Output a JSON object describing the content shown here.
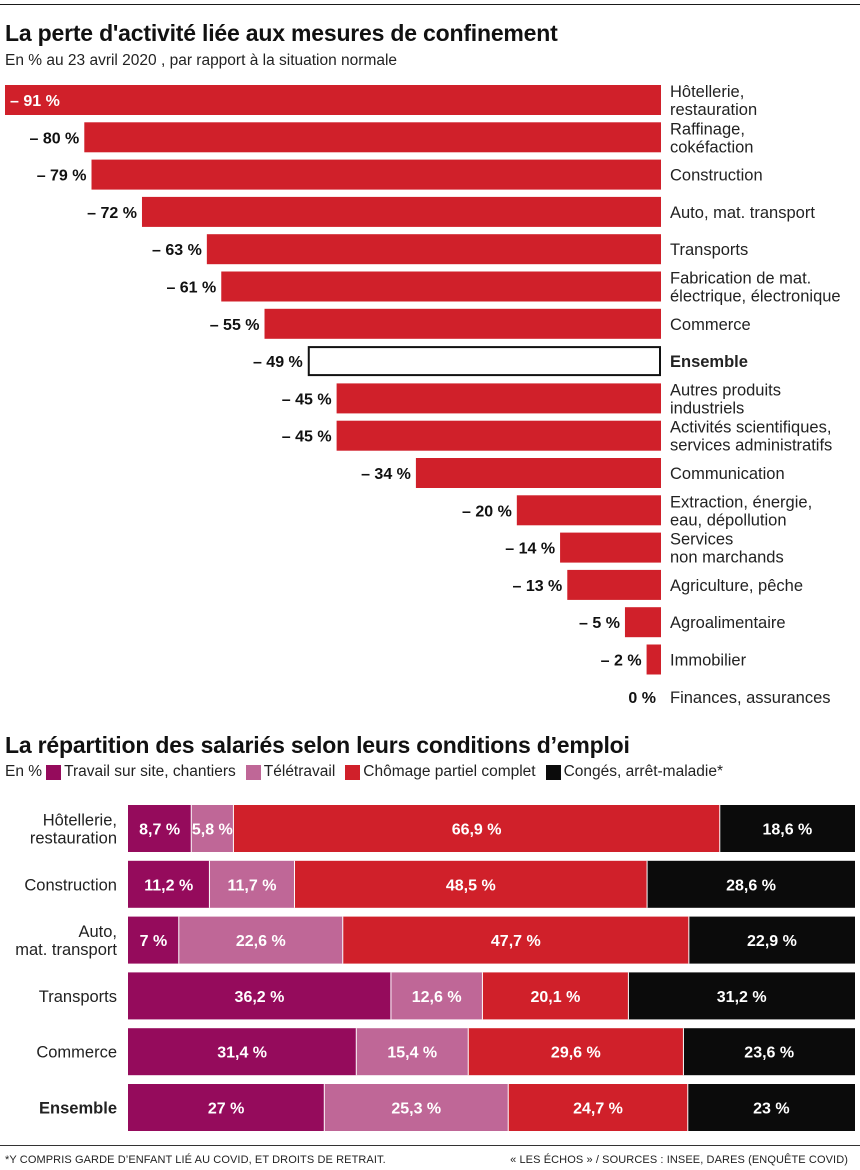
{
  "chart_data": [
    {
      "type": "bar",
      "orientation": "horizontal",
      "title": "La perte d'activité liée aux mesures de confinement",
      "subtitle": "En % au 23 avril 2020 , par rapport à la situation normale",
      "categories": [
        [
          "Hôtellerie,",
          "restauration"
        ],
        [
          "Raffinage,",
          "cokéfaction"
        ],
        [
          "Construction"
        ],
        [
          "Auto, mat. transport"
        ],
        [
          "Transports"
        ],
        [
          "Fabrication de mat.",
          "électrique, électronique"
        ],
        [
          "Commerce"
        ],
        [
          "Ensemble"
        ],
        [
          "Autres produits",
          "industriels"
        ],
        [
          "Activités scientifiques,",
          "services administratifs"
        ],
        [
          "Communication"
        ],
        [
          "Extraction, énergie,",
          "eau, dépollution"
        ],
        [
          "Services",
          "non marchands"
        ],
        [
          "Agriculture, pêche"
        ],
        [
          "Agroalimentaire"
        ],
        [
          "Immobilier"
        ],
        [
          "Finances, assurances"
        ]
      ],
      "values": [
        -91,
        -80,
        -79,
        -72,
        -63,
        -61,
        -55,
        -49,
        -45,
        -45,
        -34,
        -20,
        -14,
        -13,
        -5,
        -2,
        0
      ],
      "value_labels": [
        "– 91 %",
        "– 80 %",
        "– 79 %",
        "– 72 %",
        "– 63 %",
        "– 61 %",
        "– 55 %",
        "– 49 %",
        "– 45 %",
        "– 45 %",
        "– 34 %",
        "– 20 %",
        "– 14 %",
        "– 13 %",
        "– 5 %",
        "– 2 %",
        "0 %"
      ],
      "highlight": "Ensemble",
      "xlim": [
        -91,
        0
      ],
      "color": "#d0202a",
      "highlight_style": "outline-black"
    },
    {
      "type": "bar",
      "orientation": "horizontal",
      "stacked": true,
      "title": "La répartition des salariés selon leurs conditions d’emploi",
      "unit_label": "En %",
      "categories": [
        [
          "Hôtellerie,",
          "restauration"
        ],
        [
          "Construction"
        ],
        [
          "Auto,",
          "mat. transport"
        ],
        [
          "Transports"
        ],
        [
          "Commerce"
        ],
        [
          "Ensemble"
        ]
      ],
      "highlight": "Ensemble",
      "series": [
        {
          "name": "Travail sur site, chantiers",
          "color": "#950b5c",
          "values": [
            8.7,
            11.2,
            7,
            36.2,
            31.4,
            27
          ],
          "labels": [
            "8,7 %",
            "11,2 %",
            "7 %",
            "36,2 %",
            "31,4 %",
            "27 %"
          ]
        },
        {
          "name": "Télétravail",
          "color": "#bf6797",
          "values": [
            5.8,
            11.7,
            22.6,
            12.6,
            15.4,
            25.3
          ],
          "labels": [
            "5,8 %",
            "11,7 %",
            "22,6 %",
            "12,6 %",
            "15,4 %",
            "25,3 %"
          ]
        },
        {
          "name": "Chômage partiel complet",
          "color": "#d0202a",
          "values": [
            66.9,
            48.5,
            47.7,
            20.1,
            29.6,
            24.7
          ],
          "labels": [
            "66,9 %",
            "48,5 %",
            "47,7 %",
            "20,1 %",
            "29,6 %",
            "24,7 %"
          ]
        },
        {
          "name": "Congés, arrêt-maladie*",
          "color": "#0b0b0b",
          "values": [
            18.6,
            28.6,
            22.9,
            31.2,
            23.6,
            23
          ],
          "labels": [
            "18,6 %",
            "28,6 %",
            "22,9 %",
            "31,2 %",
            "23,6 %",
            "23 %"
          ]
        }
      ],
      "xlim": [
        0,
        100
      ]
    }
  ],
  "footnotes": {
    "left": "*Y COMPRIS GARDE D’ENFANT LIÉ AU COVID, ET DROITS DE RETRAIT.",
    "right": "« LES ÉCHOS » / SOURCES : INSEE, DARES (ENQUÊTE COVID)"
  }
}
